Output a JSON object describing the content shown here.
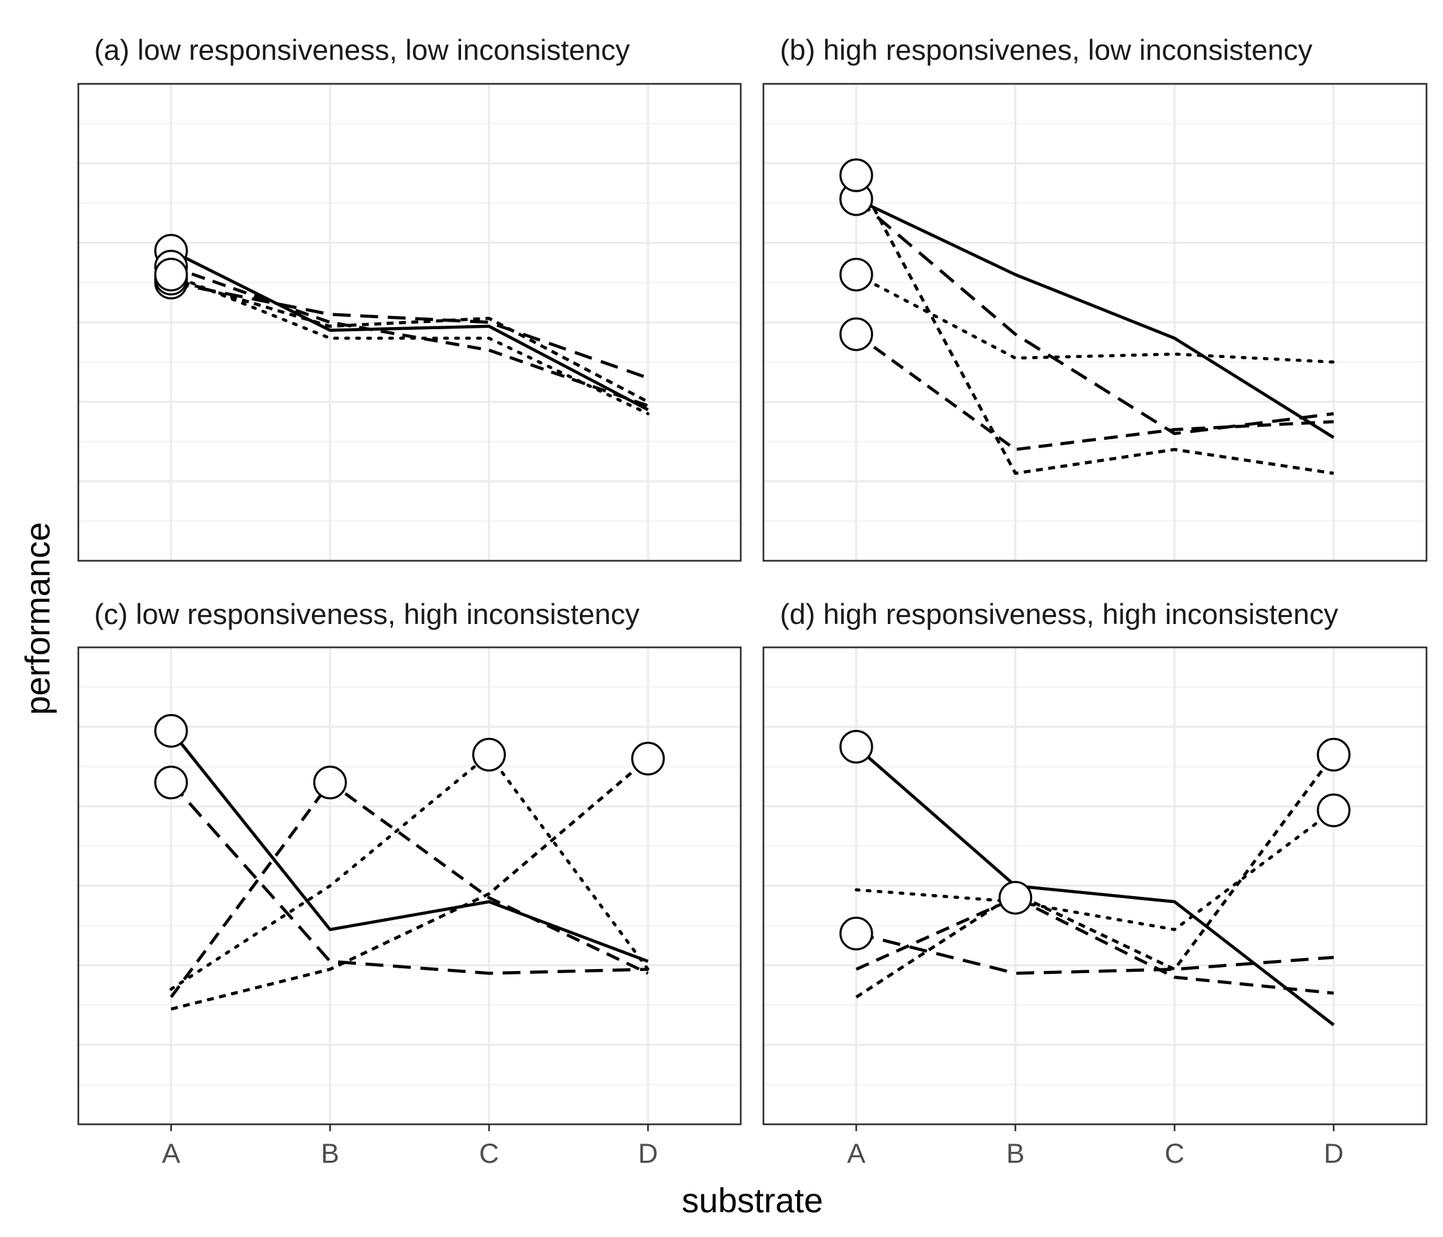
{
  "figure": {
    "xlabel": "substrate",
    "ylabel": "performance",
    "categories": [
      "A",
      "B",
      "C",
      "D"
    ]
  },
  "style": {
    "line_color": "#000000",
    "grid_major_color": "#ebebeb",
    "grid_minor_color": "#f2f2f2",
    "panel_border_color": "#333333",
    "marker_fill": "#ffffff",
    "marker_stroke": "#000000"
  },
  "chart_data": [
    {
      "type": "line",
      "title": "(a) low responsiveness, low inconsistency",
      "categories": [
        "A",
        "B",
        "C",
        "D"
      ],
      "ylim": [
        0,
        12
      ],
      "grid": true,
      "series": [
        {
          "linetype": "solid",
          "values": [
            7.8,
            5.8,
            5.9,
            3.8
          ],
          "best": "A"
        },
        {
          "linetype": "longdash",
          "values": [
            7.0,
            6.2,
            6.0,
            4.6
          ],
          "best": "A"
        },
        {
          "linetype": "dashed",
          "values": [
            7.4,
            6.0,
            5.3,
            3.9
          ],
          "best": "A"
        },
        {
          "linetype": "shortdash",
          "values": [
            7.1,
            5.9,
            6.1,
            4.0
          ],
          "best": "A"
        },
        {
          "linetype": "dotted",
          "values": [
            7.2,
            5.6,
            5.6,
            3.7
          ],
          "best": "A"
        }
      ]
    },
    {
      "type": "line",
      "title": "(b) high responsivenes, low inconsistency",
      "categories": [
        "A",
        "B",
        "C",
        "D"
      ],
      "ylim": [
        0,
        12
      ],
      "grid": true,
      "series": [
        {
          "linetype": "solid",
          "values": [
            9.1,
            7.2,
            5.6,
            3.1
          ],
          "best": "A"
        },
        {
          "linetype": "longdash",
          "values": [
            9.1,
            5.7,
            3.2,
            3.7
          ],
          "best": "A"
        },
        {
          "linetype": "dashed",
          "values": [
            5.7,
            2.8,
            3.3,
            3.5
          ],
          "best": "A"
        },
        {
          "linetype": "shortdash",
          "values": [
            9.7,
            2.2,
            2.8,
            2.2
          ],
          "best": "A"
        },
        {
          "linetype": "dotted",
          "values": [
            7.2,
            5.1,
            5.2,
            5.0
          ],
          "best": "A"
        }
      ]
    },
    {
      "type": "line",
      "title": "(c) low responsiveness, high inconsistency",
      "categories": [
        "A",
        "B",
        "C",
        "D"
      ],
      "ylim": [
        0,
        12
      ],
      "grid": true,
      "series": [
        {
          "linetype": "solid",
          "values": [
            9.9,
            4.9,
            5.6,
            4.1
          ],
          "best": "A"
        },
        {
          "linetype": "longdash",
          "values": [
            8.6,
            4.1,
            3.8,
            3.9
          ],
          "best": "A"
        },
        {
          "linetype": "dashed",
          "values": [
            3.2,
            8.6,
            5.7,
            3.8
          ],
          "best": "B"
        },
        {
          "linetype": "dotted",
          "values": [
            3.4,
            6.0,
            9.3,
            3.9
          ],
          "best": "C"
        },
        {
          "linetype": "shortdash",
          "values": [
            2.9,
            3.9,
            5.8,
            9.2
          ],
          "best": "D"
        }
      ]
    },
    {
      "type": "line",
      "title": "(d) high responsiveness, high inconsistency",
      "categories": [
        "A",
        "B",
        "C",
        "D"
      ],
      "ylim": [
        0,
        12
      ],
      "grid": true,
      "series": [
        {
          "linetype": "solid",
          "values": [
            9.5,
            6.0,
            5.6,
            2.5
          ],
          "best": "A"
        },
        {
          "linetype": "longdash",
          "values": [
            4.8,
            3.8,
            3.9,
            4.2
          ],
          "best": "A"
        },
        {
          "linetype": "dashed",
          "values": [
            3.9,
            5.7,
            3.7,
            3.3
          ],
          "best": "B"
        },
        {
          "linetype": "dotted",
          "values": [
            5.9,
            5.6,
            4.9,
            7.9
          ],
          "best": "D"
        },
        {
          "linetype": "shortdash",
          "values": [
            3.2,
            5.8,
            3.9,
            9.3
          ],
          "best": "D"
        }
      ]
    }
  ]
}
